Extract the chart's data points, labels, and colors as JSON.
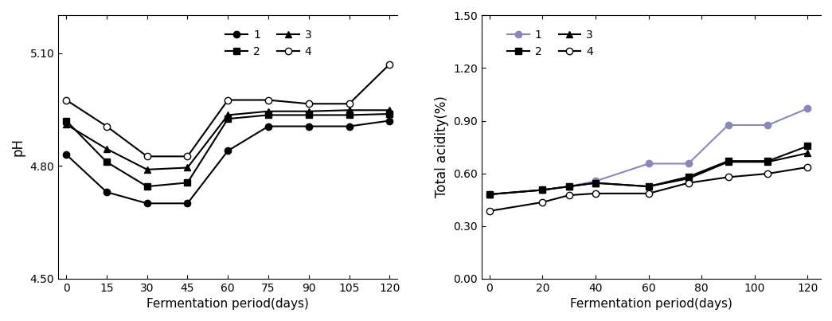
{
  "ph_x": [
    0,
    15,
    30,
    45,
    60,
    75,
    90,
    105,
    120
  ],
  "ph_series": {
    "1": [
      4.83,
      4.73,
      4.7,
      4.7,
      4.84,
      4.905,
      4.905,
      4.905,
      4.92
    ],
    "2": [
      4.92,
      4.81,
      4.745,
      4.755,
      4.925,
      4.935,
      4.935,
      4.935,
      4.938
    ],
    "3": [
      4.91,
      4.845,
      4.79,
      4.795,
      4.935,
      4.945,
      4.945,
      4.948,
      4.948
    ],
    "4": [
      4.975,
      4.905,
      4.825,
      4.825,
      4.975,
      4.975,
      4.965,
      4.965,
      5.07
    ]
  },
  "ph_ylabel": "pH",
  "ph_xlabel": "Fermentation period(days)",
  "ph_ylim": [
    4.5,
    5.2
  ],
  "ph_yticks": [
    4.5,
    4.8,
    5.1
  ],
  "ph_xticks": [
    0,
    15,
    30,
    45,
    60,
    75,
    90,
    105,
    120
  ],
  "ta_x": [
    0,
    20,
    30,
    40,
    60,
    75,
    90,
    105,
    120
  ],
  "ta_series": {
    "1": [
      0.48,
      0.505,
      0.525,
      0.555,
      0.655,
      0.655,
      0.875,
      0.875,
      0.97
    ],
    "2": [
      0.48,
      0.505,
      0.525,
      0.545,
      0.525,
      0.58,
      0.67,
      0.67,
      0.755
    ],
    "3": [
      0.48,
      0.505,
      0.525,
      0.545,
      0.525,
      0.57,
      0.665,
      0.665,
      0.715
    ],
    "4": [
      0.385,
      0.435,
      0.475,
      0.485,
      0.485,
      0.545,
      0.578,
      0.598,
      0.635
    ]
  },
  "ta_colors": [
    "#8888bb",
    "#000000",
    "#000000",
    "#000000"
  ],
  "ta_marker_fill": [
    "#8888bb",
    "black",
    "black",
    "white"
  ],
  "ta_ylabel": "Total acidity(%)",
  "ta_xlabel": "Fermentation period(days)",
  "ta_ylim": [
    0.0,
    1.5
  ],
  "ta_yticks": [
    0.0,
    0.3,
    0.6,
    0.9,
    1.2,
    1.5
  ],
  "ta_xticks": [
    0,
    20,
    40,
    60,
    80,
    100,
    120
  ],
  "legend_labels": [
    "1",
    "2",
    "3",
    "4"
  ],
  "ph_markers": [
    "o",
    "s",
    "^",
    "o"
  ],
  "ta_markers": [
    "o",
    "s",
    "^",
    "o"
  ],
  "bg_color": "#ffffff"
}
